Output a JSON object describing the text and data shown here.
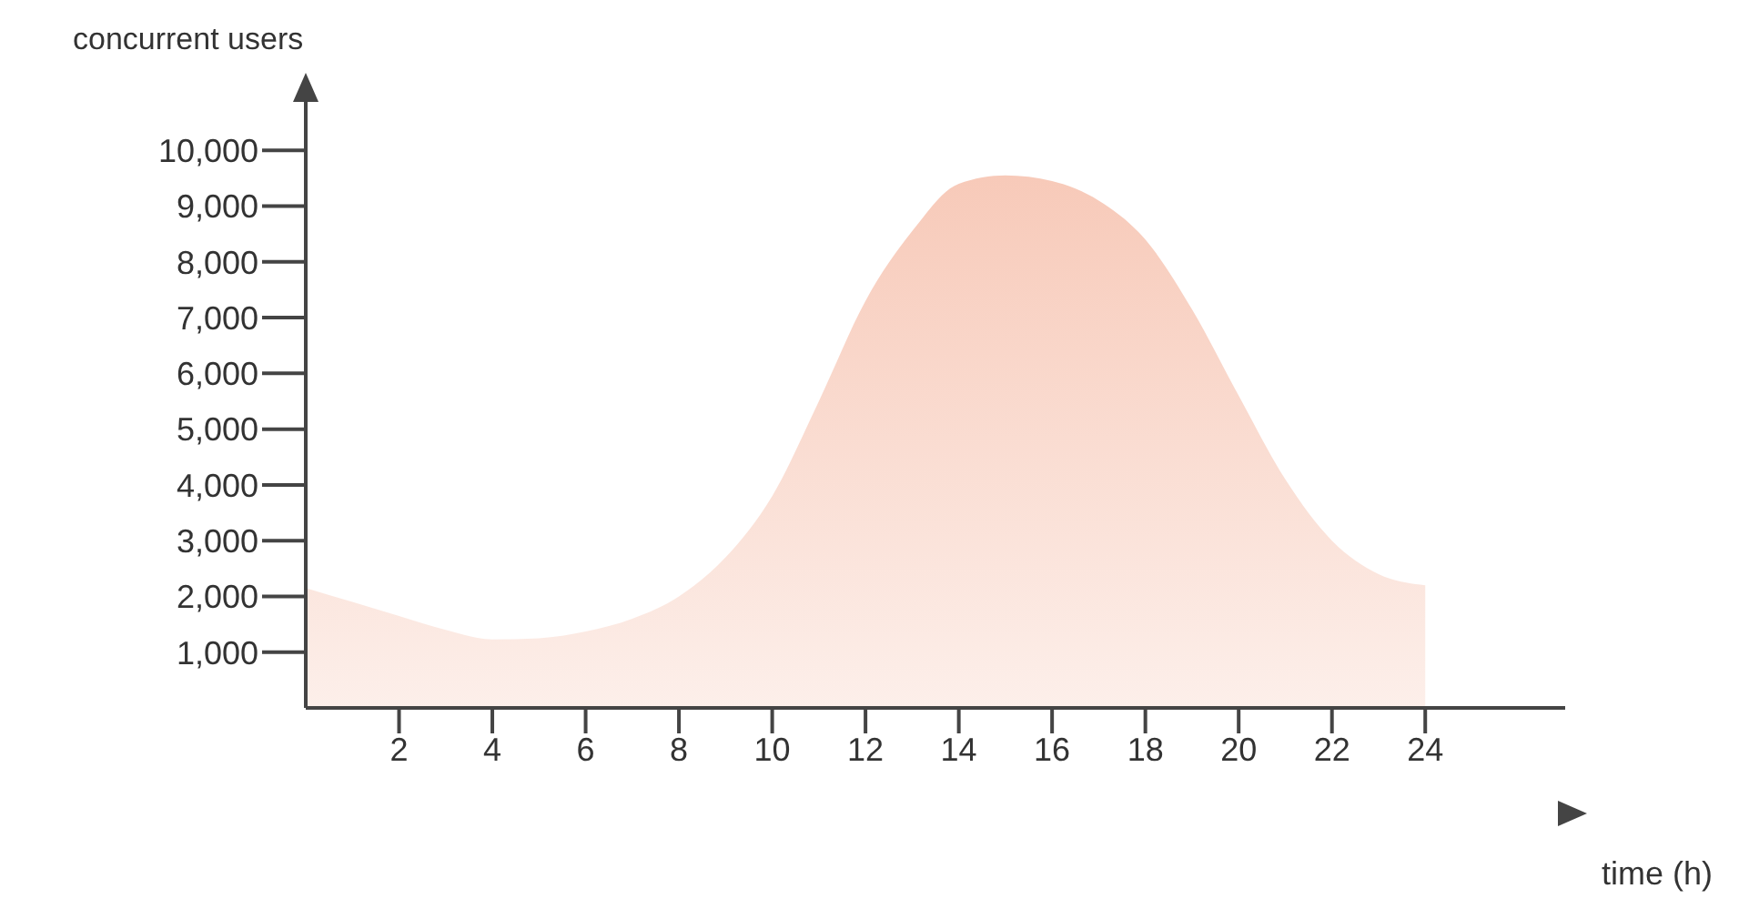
{
  "chart_data": {
    "type": "area",
    "xlabel": "time (h)",
    "ylabel": "concurrent users",
    "x": [
      0,
      1,
      2,
      3,
      4,
      5,
      6,
      7,
      8,
      9,
      10,
      11,
      12,
      13,
      14,
      15,
      16,
      17,
      18,
      19,
      20,
      21,
      22,
      23,
      24
    ],
    "series": [
      {
        "color": "#f2a68a",
        "values": [
          2150,
          1900,
          1650,
          1400,
          1230,
          1250,
          1370,
          1600,
          2000,
          2700,
          3800,
          5500,
          7300,
          8550,
          9400,
          9550,
          9450,
          9100,
          8400,
          7150,
          5600,
          4100,
          3000,
          2400,
          2200
        ]
      }
    ],
    "xlim": [
      0,
      27
    ],
    "xticks": [
      2,
      4,
      6,
      8,
      10,
      12,
      14,
      16,
      18,
      20,
      22,
      24
    ],
    "ylim": [
      0,
      11000
    ],
    "yticks": [
      {
        "value": 1000,
        "label": "1,000"
      },
      {
        "value": 2000,
        "label": "2,000"
      },
      {
        "value": 3000,
        "label": "3,000"
      },
      {
        "value": 4000,
        "label": "4,000"
      },
      {
        "value": 5000,
        "label": "5,000"
      },
      {
        "value": 6000,
        "label": "6,000"
      },
      {
        "value": 7000,
        "label": "7,000"
      },
      {
        "value": 8000,
        "label": "8,000"
      },
      {
        "value": 9000,
        "label": "9,000"
      },
      {
        "value": 10000,
        "label": "10,000"
      }
    ],
    "grid": false,
    "legend": false
  }
}
